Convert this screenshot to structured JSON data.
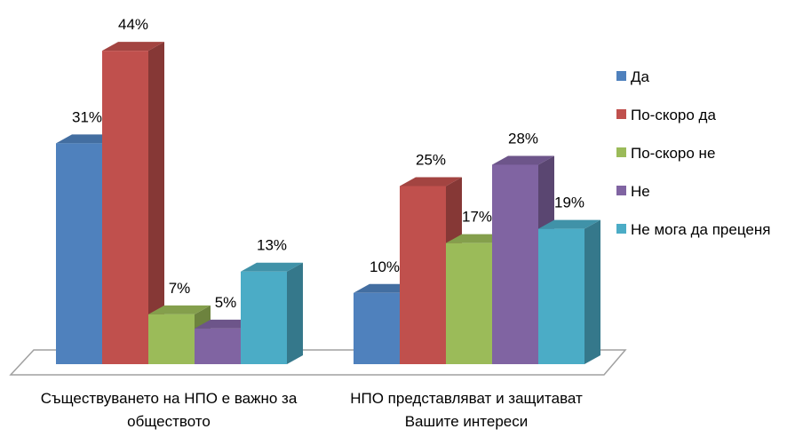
{
  "chart_data": {
    "type": "bar3d",
    "categories": [
      "Съществуването на НПО е важно за обществото",
      "НПО представляват и защитават Вашите интереси"
    ],
    "series": [
      {
        "name": "Да",
        "color": "#4f81bd",
        "values": [
          31,
          10
        ],
        "value_labels": [
          "31%",
          "10%"
        ]
      },
      {
        "name": "По-скоро да",
        "color": "#c0504d",
        "values": [
          44,
          25
        ],
        "value_labels": [
          "44%",
          "25%"
        ]
      },
      {
        "name": "По-скоро не",
        "color": "#9bbb59",
        "values": [
          7,
          17
        ],
        "value_labels": [
          "7%",
          "17%"
        ]
      },
      {
        "name": "Не",
        "color": "#8064a2",
        "values": [
          5,
          28
        ],
        "value_labels": [
          "5%",
          "28%"
        ]
      },
      {
        "name": "Не мога да преценя",
        "color": "#4bacc6",
        "values": [
          13,
          19
        ],
        "value_labels": [
          "13%",
          "19%"
        ]
      }
    ],
    "legend": "right"
  }
}
